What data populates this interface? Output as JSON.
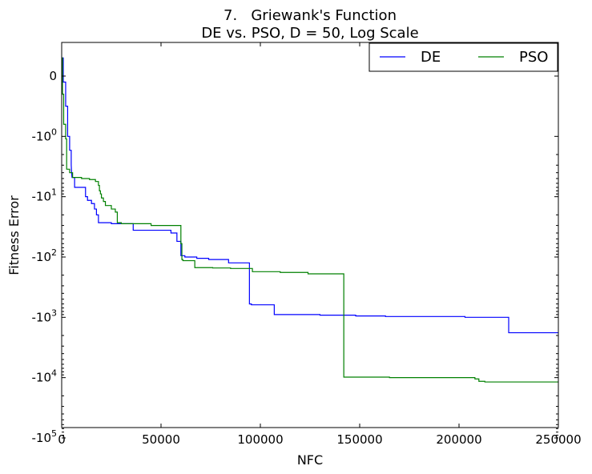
{
  "chart_data": {
    "type": "line",
    "title_line1": "7.   Griewank's Function",
    "title_line2": "DE vs. PSO, D = 50, Log Scale",
    "xlabel": "NFC",
    "ylabel": "Fitness Error",
    "xlim": [
      0,
      250000
    ],
    "yscale": "symlog (negative values)",
    "x_ticks": [
      0,
      50000,
      100000,
      150000,
      200000,
      250000
    ],
    "x_tick_labels": [
      "0",
      "50000",
      "100000",
      "150000",
      "200000",
      "250000"
    ],
    "y_ticks": [
      0,
      -1,
      -10,
      -100,
      -1000,
      -10000,
      -100000
    ],
    "y_tick_labels": [
      {
        "base": "0",
        "exp": ""
      },
      {
        "base": "-10",
        "exp": "0"
      },
      {
        "base": "-10",
        "exp": "1"
      },
      {
        "base": "-10",
        "exp": "2"
      },
      {
        "base": "-10",
        "exp": "3"
      },
      {
        "base": "-10",
        "exp": "4"
      },
      {
        "base": "-10",
        "exp": "5"
      }
    ],
    "legend_position": "top-right",
    "grid": false,
    "series": [
      {
        "name": "DE",
        "color": "#0000ff",
        "points": [
          [
            0,
            0.3
          ],
          [
            800,
            0.3
          ],
          [
            800,
            -0.1
          ],
          [
            2000,
            -0.1
          ],
          [
            2000,
            -0.5
          ],
          [
            3000,
            -0.5
          ],
          [
            3000,
            -1.0
          ],
          [
            4000,
            -1.0
          ],
          [
            4000,
            -1.7
          ],
          [
            4800,
            -1.7
          ],
          [
            4800,
            -3.0
          ],
          [
            5000,
            -4.0
          ],
          [
            5200,
            -4.8
          ],
          [
            6500,
            -4.8
          ],
          [
            6500,
            -7.0
          ],
          [
            12000,
            -7.0
          ],
          [
            12000,
            -10.0
          ],
          [
            13000,
            -10.0
          ],
          [
            13000,
            -11.5
          ],
          [
            15000,
            -11.5
          ],
          [
            15000,
            -13.0
          ],
          [
            16500,
            -13.0
          ],
          [
            16500,
            -16.0
          ],
          [
            17500,
            -16.0
          ],
          [
            17500,
            -20.0
          ],
          [
            18500,
            -20.0
          ],
          [
            18500,
            -27.0
          ],
          [
            25000,
            -27.0
          ],
          [
            25000,
            -28.0
          ],
          [
            36000,
            -28.0
          ],
          [
            36000,
            -36.0
          ],
          [
            55000,
            -36.0
          ],
          [
            55000,
            -40.0
          ],
          [
            58000,
            -40.0
          ],
          [
            58000,
            -55.0
          ],
          [
            60000,
            -55.0
          ],
          [
            60000,
            -95.0
          ],
          [
            62000,
            -95.0
          ],
          [
            62000,
            -100.0
          ],
          [
            68000,
            -100.0
          ],
          [
            68000,
            -105.0
          ],
          [
            74000,
            -105.0
          ],
          [
            74000,
            -110.0
          ],
          [
            84000,
            -110.0
          ],
          [
            84000,
            -125.0
          ],
          [
            94500,
            -125.0
          ],
          [
            94500,
            -600.0
          ],
          [
            95500,
            -600.0
          ],
          [
            95500,
            -620.0
          ],
          [
            107000,
            -620.0
          ],
          [
            107000,
            -900.0
          ],
          [
            130000,
            -900.0
          ],
          [
            130000,
            -920.0
          ],
          [
            148000,
            -920.0
          ],
          [
            148000,
            -950.0
          ],
          [
            163000,
            -950.0
          ],
          [
            163000,
            -970.0
          ],
          [
            203000,
            -970.0
          ],
          [
            203000,
            -1000.0
          ],
          [
            225000,
            -1000.0
          ],
          [
            225000,
            -1800.0
          ],
          [
            250000,
            -1800.0
          ]
        ]
      },
      {
        "name": "PSO",
        "color": "#008000",
        "points": [
          [
            0,
            0.3
          ],
          [
            400,
            0.3
          ],
          [
            400,
            -0.3
          ],
          [
            1000,
            -0.3
          ],
          [
            1000,
            -0.8
          ],
          [
            2000,
            -0.8
          ],
          [
            2000,
            -1.1
          ],
          [
            2500,
            -1.1
          ],
          [
            2500,
            -3.5
          ],
          [
            4000,
            -3.5
          ],
          [
            4000,
            -4.0
          ],
          [
            5500,
            -4.0
          ],
          [
            5500,
            -4.8
          ],
          [
            10000,
            -4.8
          ],
          [
            10000,
            -5.0
          ],
          [
            14000,
            -5.0
          ],
          [
            14000,
            -5.2
          ],
          [
            17000,
            -5.2
          ],
          [
            17000,
            -5.6
          ],
          [
            18500,
            -5.6
          ],
          [
            18500,
            -6.5
          ],
          [
            19000,
            -6.5
          ],
          [
            19000,
            -8.0
          ],
          [
            19500,
            -8.0
          ],
          [
            19500,
            -9.0
          ],
          [
            20000,
            -9.0
          ],
          [
            20000,
            -10.5
          ],
          [
            21000,
            -10.5
          ],
          [
            21000,
            -12.0
          ],
          [
            22000,
            -12.0
          ],
          [
            22000,
            -14.0
          ],
          [
            25000,
            -14.0
          ],
          [
            25000,
            -16.0
          ],
          [
            27000,
            -16.0
          ],
          [
            27000,
            -18.0
          ],
          [
            28000,
            -18.0
          ],
          [
            28000,
            -27.0
          ],
          [
            30000,
            -27.0
          ],
          [
            30000,
            -28.0
          ],
          [
            45000,
            -28.0
          ],
          [
            45000,
            -30.0
          ],
          [
            60000,
            -30.0
          ],
          [
            60000,
            -60.0
          ],
          [
            60500,
            -60.0
          ],
          [
            60500,
            -110.0
          ],
          [
            61000,
            -110.0
          ],
          [
            61000,
            -115.0
          ],
          [
            67000,
            -115.0
          ],
          [
            67000,
            -150.0
          ],
          [
            76000,
            -150.0
          ],
          [
            76000,
            -152.0
          ],
          [
            85000,
            -152.0
          ],
          [
            85000,
            -155.0
          ],
          [
            96000,
            -155.0
          ],
          [
            96000,
            -175.0
          ],
          [
            110000,
            -175.0
          ],
          [
            110000,
            -180.0
          ],
          [
            124000,
            -180.0
          ],
          [
            124000,
            -190.0
          ],
          [
            142000,
            -190.0
          ],
          [
            142000,
            -9800.0
          ],
          [
            165000,
            -9800.0
          ],
          [
            165000,
            -10000.0
          ],
          [
            208000,
            -10000.0
          ],
          [
            208000,
            -10500.0
          ],
          [
            210000,
            -10500.0
          ],
          [
            210000,
            -11500.0
          ],
          [
            213000,
            -11500.0
          ],
          [
            213000,
            -11800.0
          ],
          [
            250000,
            -11800.0
          ]
        ]
      }
    ]
  }
}
